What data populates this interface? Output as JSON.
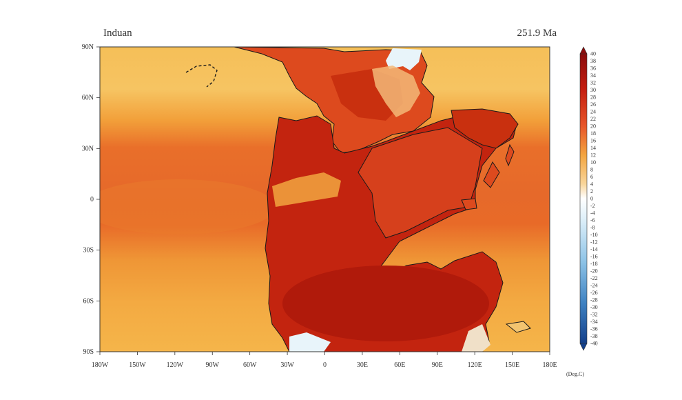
{
  "header": {
    "left_title": "Induan",
    "right_title": "251.9 Ma"
  },
  "map": {
    "projection": "lat-lon",
    "lon_ticks": [
      "180W",
      "150W",
      "120W",
      "90W",
      "60W",
      "30W",
      "0",
      "30E",
      "60E",
      "90E",
      "120E",
      "150E",
      "180E"
    ],
    "lat_ticks": [
      "90N",
      "60N",
      "30N",
      "0",
      "30S",
      "60S",
      "90S"
    ],
    "colors": {
      "ocean_cool": "#f5bd52",
      "ocean_mid": "#f2a238",
      "ocean_warm": "#e8702a",
      "land_hot": "#d8401c",
      "land_hottest": "#b71d0d",
      "polar_cool": "#f2e0c8",
      "ice": "#e8f4fa",
      "coast": "#1a1a1a"
    }
  },
  "colorbar": {
    "labels": [
      "40",
      "38",
      "36",
      "34",
      "32",
      "30",
      "28",
      "26",
      "24",
      "22",
      "20",
      "18",
      "16",
      "14",
      "12",
      "10",
      "8",
      "6",
      "4",
      "2",
      "0",
      "-2",
      "-4",
      "-6",
      "-8",
      "-10",
      "-12",
      "-14",
      "-16",
      "-18",
      "-20",
      "-22",
      "-24",
      "-26",
      "-28",
      "-30",
      "-32",
      "-34",
      "-36",
      "-38",
      "-40"
    ],
    "unit": "(Deg.C)"
  }
}
